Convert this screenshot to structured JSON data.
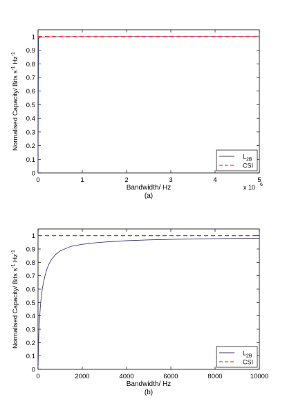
{
  "chart_data": [
    {
      "type": "line",
      "caption": "(a)",
      "xlabel": "Bandwidth/ Hz",
      "ylabel": "Normalised Capacity/ Bits s",
      "ylabel_sup": "-1",
      "ylabel_unit": " Hz",
      "ylabel_sup2": "-1",
      "xlim": [
        0,
        5000000
      ],
      "ylim": [
        0,
        1.05
      ],
      "x_ticks": [
        0,
        1,
        2,
        3,
        4,
        5
      ],
      "x_multiplier_text": "x 10",
      "x_multiplier_exp": "6",
      "y_ticks": [
        "0",
        "0.1",
        "0.2",
        "0.3",
        "0.4",
        "0.5",
        "0.6",
        "0.7",
        "0.8",
        "0.9",
        "1"
      ],
      "legend": {
        "placement": "bottom-right",
        "entries": [
          {
            "label": "L",
            "sub": "2B"
          },
          {
            "label": "CSI"
          }
        ]
      },
      "series": [
        {
          "name": "L2B",
          "style": "solid",
          "color": "#3a3a70",
          "x": [
            0,
            10000,
            20000,
            50000,
            100000,
            200000,
            500000,
            1000000,
            2000000,
            3000000,
            4000000,
            5000000
          ],
          "y": [
            0,
            0.985,
            0.99,
            0.995,
            0.997,
            0.998,
            0.999,
            0.999,
            1.0,
            1.0,
            1.0,
            1.0
          ]
        },
        {
          "name": "CSI",
          "style": "dashed",
          "color": "#ff0000",
          "x": [
            0,
            5000000
          ],
          "y": [
            1.0,
            1.0
          ]
        }
      ]
    },
    {
      "type": "line",
      "caption": "(b)",
      "xlabel": "Bandwidth/ Hz",
      "ylabel": "Normalised Capacity/ Bits s",
      "ylabel_sup": "-1",
      "ylabel_unit": " Hz",
      "ylabel_sup2": "-1",
      "xlim": [
        0,
        10000
      ],
      "ylim": [
        0,
        1.05
      ],
      "x_ticks": [
        0,
        2000,
        4000,
        6000,
        8000,
        10000
      ],
      "y_ticks": [
        "0",
        "0.1",
        "0.2",
        "0.3",
        "0.4",
        "0.5",
        "0.6",
        "0.7",
        "0.8",
        "0.9",
        "1"
      ],
      "legend": {
        "placement": "bottom-right",
        "entries": [
          {
            "label": "L",
            "sub": "2B"
          },
          {
            "label": "CSI"
          }
        ]
      },
      "series": [
        {
          "name": "L2B",
          "style": "solid",
          "color": "#3a3a70",
          "x": [
            0,
            25,
            50,
            100,
            150,
            200,
            300,
            400,
            500,
            600,
            800,
            1000,
            1200,
            1500,
            2000,
            2500,
            3000,
            4000,
            5000,
            6000,
            7000,
            8000,
            9000,
            10000
          ],
          "y": [
            0,
            0.21,
            0.32,
            0.46,
            0.55,
            0.61,
            0.69,
            0.75,
            0.79,
            0.82,
            0.86,
            0.885,
            0.9,
            0.92,
            0.935,
            0.945,
            0.952,
            0.962,
            0.968,
            0.972,
            0.975,
            0.977,
            0.979,
            0.98
          ]
        },
        {
          "name": "CSI",
          "style": "dashed",
          "color": "#ff0000",
          "x": [
            0,
            10000
          ],
          "y": [
            1.0,
            1.0
          ]
        }
      ]
    }
  ]
}
